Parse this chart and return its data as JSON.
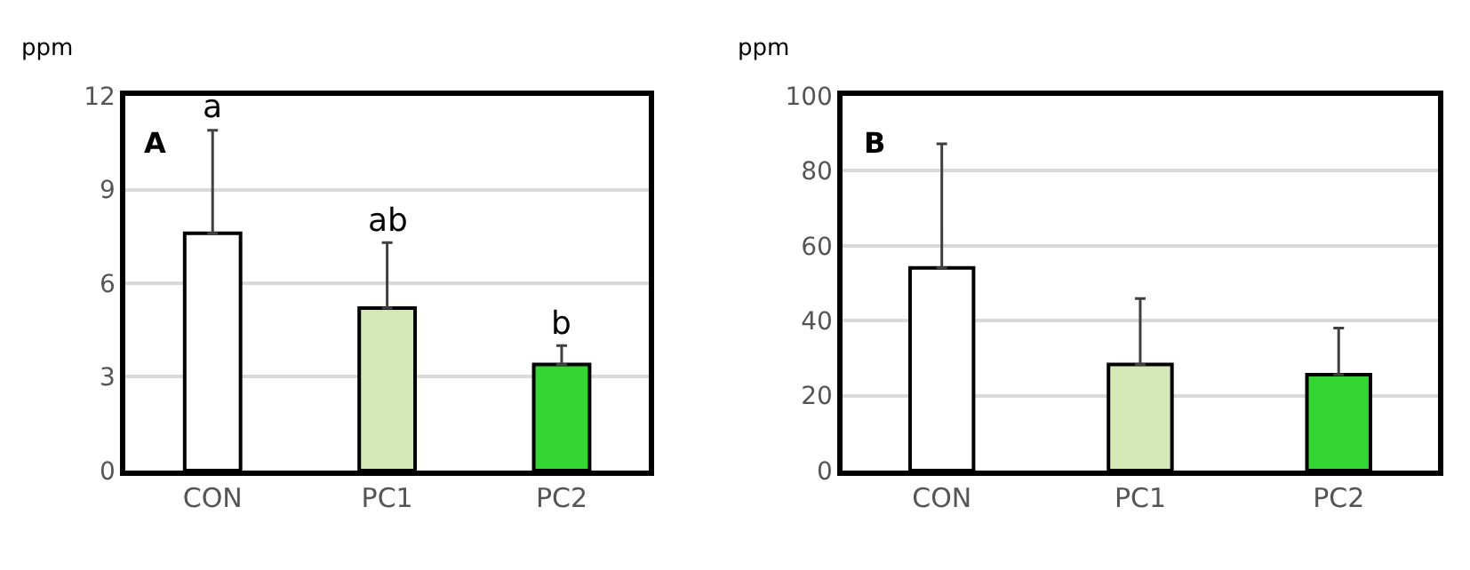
{
  "chart_data": [
    {
      "type": "bar",
      "ylabel": "ppm",
      "categories": [
        "CON",
        "PC1",
        "PC2"
      ],
      "values": [
        7.6,
        5.2,
        3.4
      ],
      "colors": [
        "#ffffff",
        "#d6e8b8",
        "#33d633"
      ],
      "errors": [
        [
          7.6,
          10.9
        ],
        [
          5.2,
          7.3
        ],
        [
          3.4,
          4.0
        ]
      ],
      "ylim": [
        0,
        12
      ],
      "yticks": [
        0,
        3,
        6,
        9,
        12
      ],
      "grid": "y",
      "annotations": [
        "A",
        {
          "text": "a",
          "x": "CON",
          "y": 10.9
        },
        {
          "text": "ab",
          "x": "PC1",
          "y": 7.3
        },
        {
          "text": "b",
          "x": "PC2",
          "y": 4.0
        }
      ]
    },
    {
      "type": "bar",
      "ylabel": "ppm",
      "categories": [
        "CON",
        "PC1",
        "PC2"
      ],
      "values": [
        54.1,
        28.3,
        25.6
      ],
      "colors": [
        "#ffffff",
        "#d6e8b8",
        "#33d633"
      ],
      "errors": [
        [
          54.1,
          87.2
        ],
        [
          28.3,
          45.9
        ],
        [
          25.6,
          38.0
        ]
      ],
      "ylim": [
        0,
        100
      ],
      "yticks": [
        0,
        20,
        40,
        60,
        80,
        100
      ],
      "grid": "y",
      "annotations": [
        "B"
      ]
    }
  ]
}
